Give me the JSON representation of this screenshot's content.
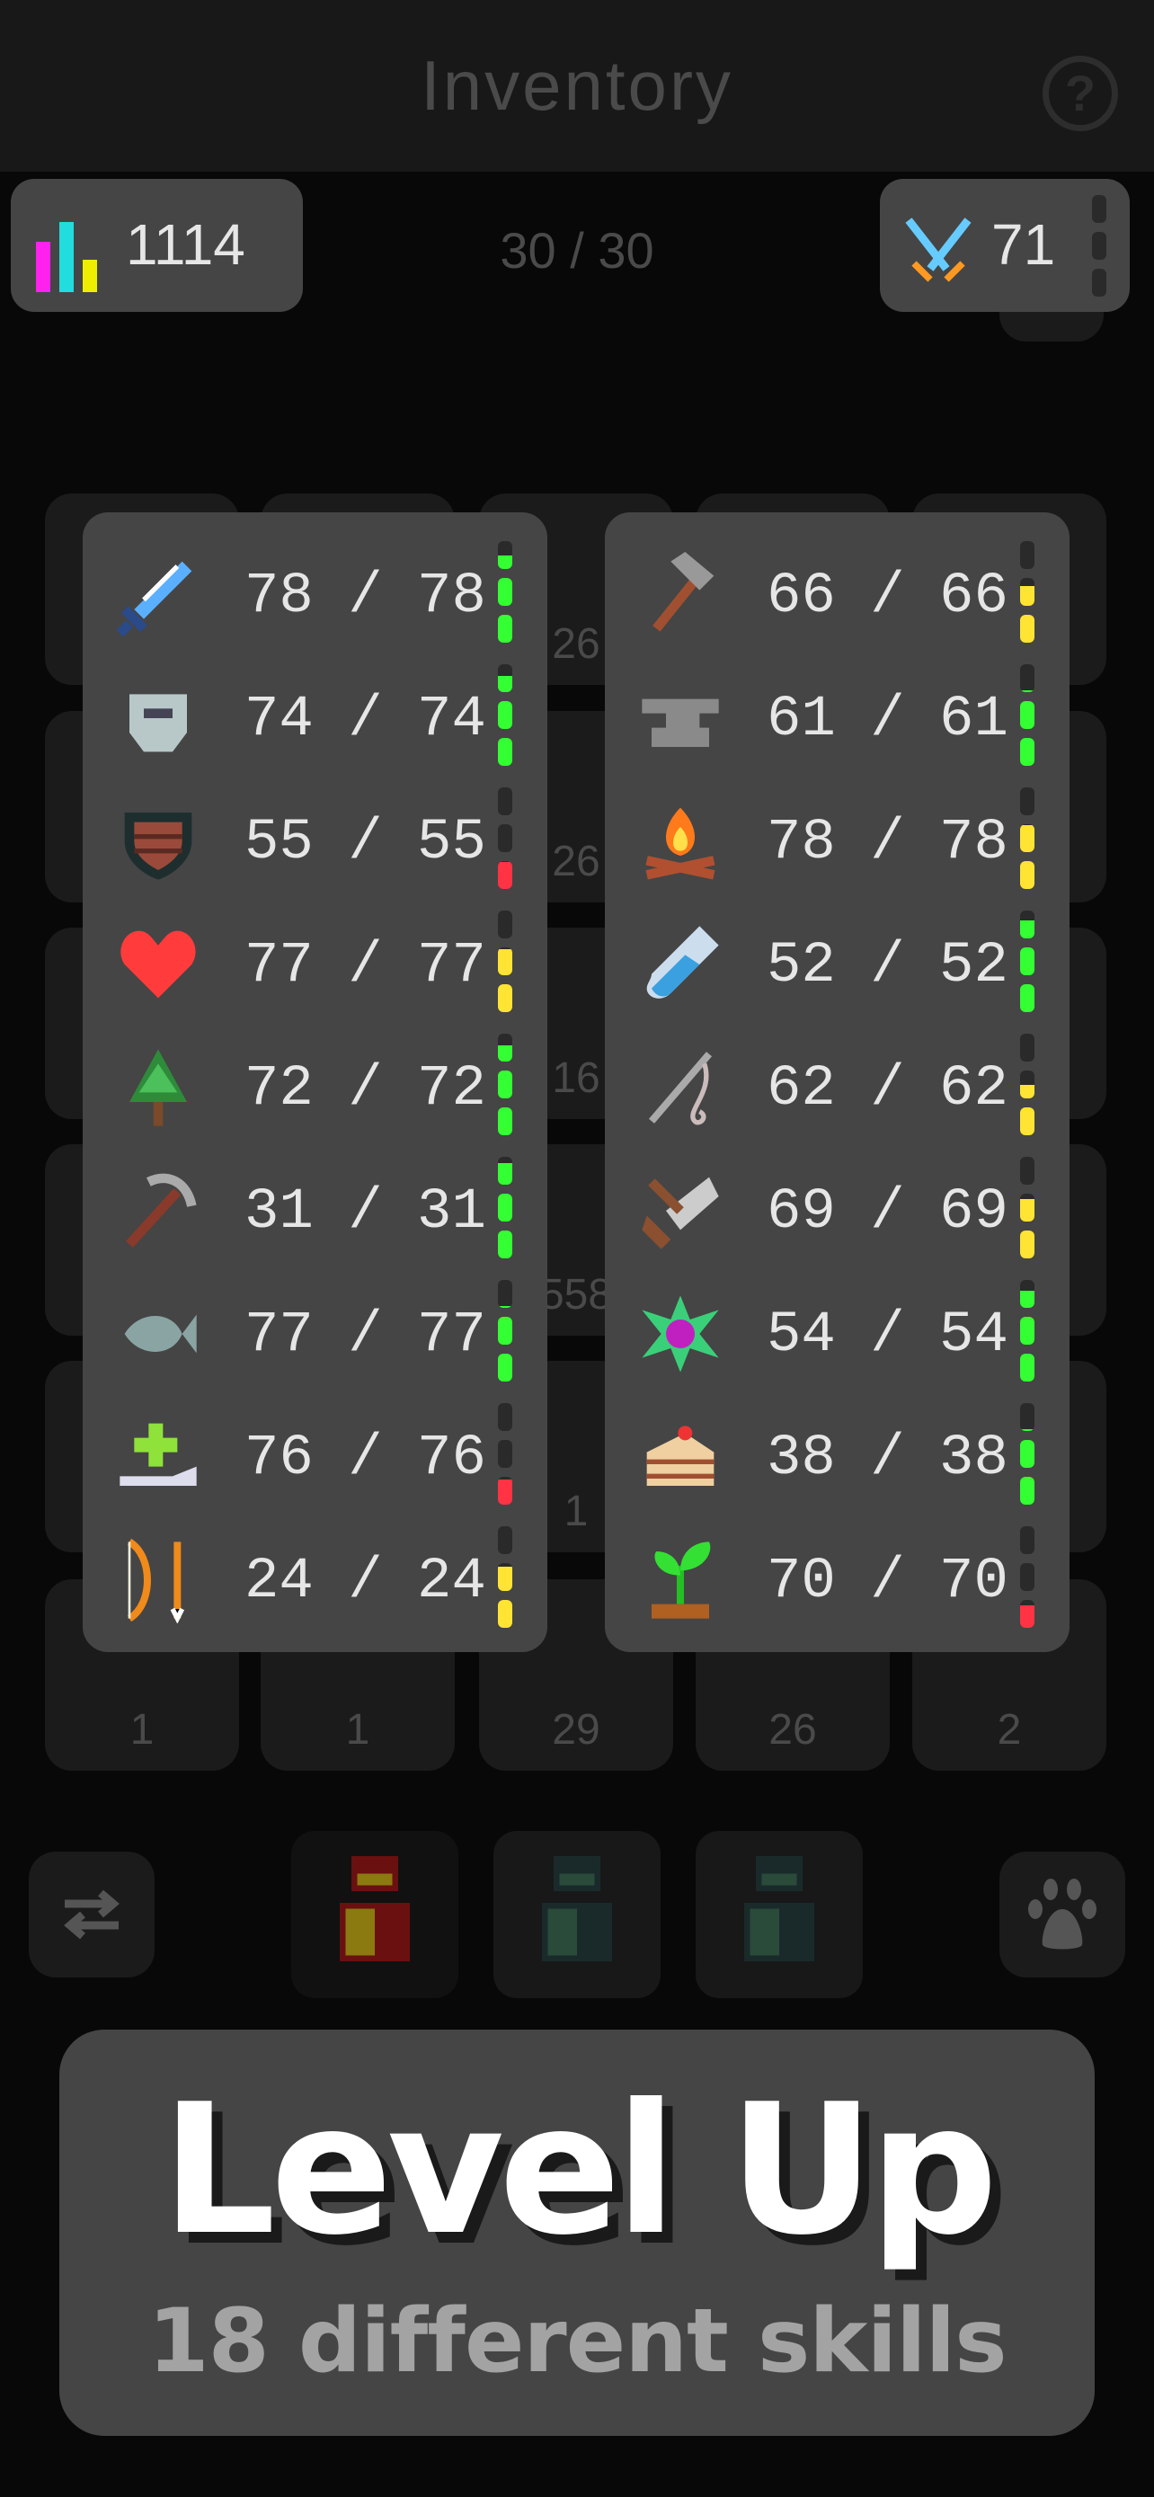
{
  "header": {
    "title": "Inventory",
    "help_icon": "question-circle-icon"
  },
  "stats": {
    "total_level": "1114",
    "icon": "bar-chart-icon",
    "capacity": "30 / 30",
    "combat_level": "71",
    "combat_icon": "crossed-swords-icon",
    "combat_progress": 0
  },
  "inventory": {
    "counts": [
      [
        "",
        "",
        "26",
        "",
        ""
      ],
      [
        "",
        "",
        "26",
        "",
        ""
      ],
      [
        "",
        "",
        "16",
        "",
        ""
      ],
      [
        "",
        "",
        "558",
        "",
        ""
      ],
      [
        "",
        "",
        "1",
        "",
        ""
      ],
      [
        "1",
        "1",
        "29",
        "26",
        "2"
      ]
    ]
  },
  "colors": {
    "green": "#33ff33",
    "yellow": "#ffe433",
    "red": "#ff3344",
    "panel": "#454545"
  },
  "skills_left": [
    {
      "icon": "sword-icon",
      "value": "78 / 78",
      "progress": 0.83,
      "color": "#33ff33"
    },
    {
      "icon": "helmet-icon",
      "value": "74 / 74",
      "progress": 0.86,
      "color": "#33ff33"
    },
    {
      "icon": "shield-icon",
      "value": "55 / 55",
      "progress": 0.32,
      "color": "#ff3344"
    },
    {
      "icon": "heart-icon",
      "value": "77 / 77",
      "progress": 0.64,
      "color": "#ffe433"
    },
    {
      "icon": "tree-icon",
      "value": "72 / 72",
      "progress": 0.86,
      "color": "#33ff33"
    },
    {
      "icon": "pickaxe-icon",
      "value": "31 / 31",
      "progress": 0.93,
      "color": "#33ff33"
    },
    {
      "icon": "fish-icon",
      "value": "77 / 77",
      "progress": 0.69,
      "color": "#33ff33"
    },
    {
      "icon": "healing-hand-icon",
      "value": "76 / 76",
      "progress": 0.3,
      "color": "#ff3344"
    },
    {
      "icon": "bow-arrow-icon",
      "value": "24 / 24",
      "progress": 0.62,
      "color": "#ffe433"
    }
  ],
  "skills_right": [
    {
      "icon": "hammer-icon",
      "value": "66 / 66",
      "progress": 0.57,
      "color": "#ffe433"
    },
    {
      "icon": "anvil-icon",
      "value": "61 / 61",
      "progress": 0.69,
      "color": "#33ff33"
    },
    {
      "icon": "campfire-icon",
      "value": "78 / 78",
      "progress": 0.66,
      "color": "#ffe433"
    },
    {
      "icon": "potion-vial-icon",
      "value": "52 / 52",
      "progress": 0.88,
      "color": "#33ff33"
    },
    {
      "icon": "needle-thread-icon",
      "value": "62 / 62",
      "progress": 0.5,
      "color": "#ffe433"
    },
    {
      "icon": "saw-icon",
      "value": "69 / 69",
      "progress": 0.6,
      "color": "#ffe433"
    },
    {
      "icon": "magic-gem-icon",
      "value": "54 / 54",
      "progress": 0.87,
      "color": "#33ff33"
    },
    {
      "icon": "cake-icon",
      "value": "38 / 38",
      "progress": 0.69,
      "color": "#33ff33"
    },
    {
      "icon": "sprout-icon",
      "value": "70 / 70",
      "progress": 0.27,
      "color": "#ff3344"
    }
  ],
  "bottom": {
    "swap_icon": "swap-arrows-icon",
    "pet_icon": "paw-icon",
    "bags": [
      "red-backpack-icon",
      "green-backpack-icon",
      "green-backpack-icon"
    ]
  },
  "banner": {
    "title": "Level Up",
    "subtitle": "18 different skills"
  }
}
